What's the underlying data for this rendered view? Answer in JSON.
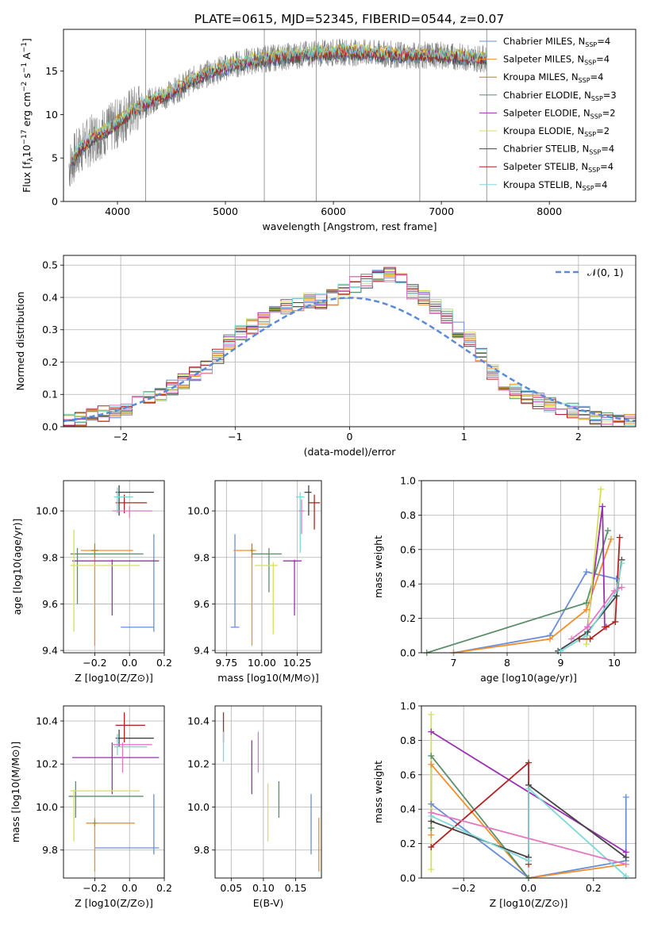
{
  "figure": {
    "title": "PLATE=0615, MJD=52345, FIBERID=0544, z=0.07"
  },
  "colors": {
    "Chabrier MILES": "#6a8fd6",
    "Salpeter MILES": "#f28e2b",
    "Kroupa MILES": "#b8860b",
    "Chabrier ELODIE": "#5a8f6a",
    "Salpeter ELODIE": "#9b30b0",
    "Kroupa ELODIE": "#d4e157",
    "Chabrier STELIB": "#444444",
    "Salpeter STELIB": "#b22222",
    "Kroupa STELIB": "#7fd8d8",
    "pink": "#e377c2",
    "data": "#808080"
  },
  "chart_data": [
    {
      "id": "spectrum",
      "type": "line",
      "xlabel": "wavelength [Angstrom, rest frame]",
      "ylabel": "Flux [f_λ 10^-17 erg cm^-2 s^-1 A^-1]",
      "xlim": [
        3500,
        8800
      ],
      "ylim": [
        0,
        19.8
      ],
      "xticks": [
        "4000",
        "5000",
        "6000",
        "7000",
        "8000"
      ],
      "yticks": [
        "0",
        "5",
        "10",
        "15"
      ],
      "legend_position": "top-right",
      "legend": [
        "Chabrier MILES, N_SSP=4",
        "Salpeter MILES, N_SSP=4",
        "Kroupa MILES, N_SSP=4",
        "Chabrier ELODIE, N_SSP=3",
        "Salpeter ELODIE, N_SSP=2",
        "Kroupa ELODIE, N_SSP=2",
        "Chabrier STELIB, N_SSP=4",
        "Salpeter STELIB, N_SSP=4",
        "Kroupa STELIB, N_SSP=4"
      ],
      "continuum": {
        "x": [
          3550,
          3650,
          3800,
          3950,
          4100,
          4300,
          4500,
          4700,
          4900,
          5100,
          5300,
          5500,
          5800,
          6100,
          6400,
          6700,
          7000,
          7300,
          7420
        ],
        "y": [
          4.0,
          6.0,
          7.5,
          8.5,
          10.0,
          11.5,
          12.5,
          14.0,
          15.0,
          15.8,
          16.3,
          16.6,
          17.0,
          17.2,
          17.0,
          16.8,
          16.8,
          16.5,
          16.4
        ]
      }
    },
    {
      "id": "residuals",
      "type": "histogram",
      "xlabel": "(data-model)/error",
      "ylabel": "Normed distribution",
      "xlim": [
        -2.5,
        2.5
      ],
      "ylim": [
        0,
        0.53
      ],
      "xticks": [
        "−2",
        "−1",
        "0",
        "1",
        "2"
      ],
      "yticks": [
        "0.0",
        "0.1",
        "0.2",
        "0.3",
        "0.4",
        "0.5"
      ],
      "legend": [
        "𝒩(0, 1)"
      ],
      "legend_position": "top-right",
      "bin_width": 0.1,
      "centers": [
        -2.45,
        -2.35,
        -2.25,
        -2.15,
        -2.05,
        -1.95,
        -1.85,
        -1.75,
        -1.65,
        -1.55,
        -1.45,
        -1.35,
        -1.25,
        -1.15,
        -1.05,
        -0.95,
        -0.85,
        -0.75,
        -0.65,
        -0.55,
        -0.45,
        -0.35,
        -0.25,
        -0.15,
        -0.05,
        0.05,
        0.15,
        0.25,
        0.35,
        0.45,
        0.55,
        0.65,
        0.75,
        0.85,
        0.95,
        1.05,
        1.15,
        1.25,
        1.35,
        1.45,
        1.55,
        1.65,
        1.75,
        1.85,
        1.95,
        2.05,
        2.15,
        2.25,
        2.35,
        2.45
      ],
      "base": [
        0.02,
        0.025,
        0.035,
        0.04,
        0.045,
        0.06,
        0.08,
        0.09,
        0.1,
        0.12,
        0.14,
        0.16,
        0.18,
        0.22,
        0.26,
        0.29,
        0.31,
        0.33,
        0.36,
        0.37,
        0.38,
        0.39,
        0.39,
        0.4,
        0.42,
        0.44,
        0.45,
        0.46,
        0.47,
        0.45,
        0.42,
        0.4,
        0.37,
        0.34,
        0.3,
        0.27,
        0.22,
        0.17,
        0.13,
        0.11,
        0.09,
        0.08,
        0.07,
        0.06,
        0.05,
        0.04,
        0.03,
        0.025,
        0.02,
        0.015
      ]
    },
    {
      "id": "age-vs-Z",
      "type": "errorbar",
      "xlabel": "Z [log10(Z/Z⊙)]",
      "ylabel": "age [log10(age/yr)]",
      "xlim": [
        -0.38,
        0.2
      ],
      "ylim": [
        9.39,
        10.13
      ],
      "xticks": [
        "−0.2",
        "0.0",
        "0.2"
      ],
      "yticks": [
        "9.4",
        "9.6",
        "9.8",
        "10.0"
      ],
      "points": [
        {
          "c": "Chabrier MILES",
          "x": 0.14,
          "y": 9.5,
          "xlo": -0.05,
          "xhi": 0.14,
          "ylo": 9.48,
          "yhi": 9.9
        },
        {
          "c": "Salpeter MILES",
          "x": -0.2,
          "y": 9.83,
          "xlo": -0.28,
          "xhi": 0.02,
          "ylo": 9.42,
          "yhi": 9.83
        },
        {
          "c": "Kroupa MILES",
          "x": -0.2,
          "y": 9.83,
          "xlo": -0.22,
          "xhi": -0.18,
          "ylo": 9.8,
          "yhi": 9.86
        },
        {
          "c": "Chabrier ELODIE",
          "x": -0.3,
          "y": 9.815,
          "xlo": -0.34,
          "xhi": 0.08,
          "ylo": 9.6,
          "yhi": 9.84
        },
        {
          "c": "Salpeter ELODIE",
          "x": -0.1,
          "y": 9.785,
          "xlo": -0.33,
          "xhi": 0.17,
          "ylo": 9.55,
          "yhi": 9.79
        },
        {
          "c": "Kroupa ELODIE",
          "x": -0.32,
          "y": 9.765,
          "xlo": -0.34,
          "xhi": 0.06,
          "ylo": 9.48,
          "yhi": 9.92
        },
        {
          "c": "Chabrier STELIB",
          "x": -0.06,
          "y": 10.08,
          "xlo": -0.08,
          "xhi": 0.14,
          "ylo": 9.98,
          "yhi": 10.11
        },
        {
          "c": "Salpeter STELIB",
          "x": -0.03,
          "y": 10.035,
          "xlo": -0.08,
          "xhi": 0.1,
          "ylo": 9.99,
          "yhi": 10.07
        },
        {
          "c": "Kroupa STELIB",
          "x": -0.07,
          "y": 10.06,
          "xlo": -0.09,
          "xhi": 0.02,
          "ylo": 9.99,
          "yhi": 10.1
        },
        {
          "c": "pink",
          "x": 0.0,
          "y": 10.0,
          "xlo": -0.1,
          "xhi": 0.13,
          "ylo": 9.97,
          "yhi": 10.02
        }
      ]
    },
    {
      "id": "age-vs-mass",
      "type": "errorbar",
      "xlabel": "mass [log10(M/M⊙)]",
      "ylabel": "",
      "xlim": [
        9.67,
        10.42
      ],
      "ylim": [
        9.39,
        10.13
      ],
      "xticks": [
        "9.75",
        "10.00",
        "10.25"
      ],
      "yticks": [
        "9.4",
        "9.6",
        "9.8",
        "10.0"
      ],
      "points": [
        {
          "c": "Chabrier MILES",
          "x": 9.81,
          "y": 9.5,
          "xlo": 9.78,
          "xhi": 9.84,
          "ylo": 9.5,
          "yhi": 9.9
        },
        {
          "c": "Salpeter MILES",
          "x": 9.93,
          "y": 9.83,
          "xlo": 9.8,
          "xhi": 9.96,
          "ylo": 9.42,
          "yhi": 9.84
        },
        {
          "c": "Kroupa MILES",
          "x": 9.93,
          "y": 9.83,
          "xlo": 9.92,
          "xhi": 9.94,
          "ylo": 9.8,
          "yhi": 9.86
        },
        {
          "c": "Chabrier ELODIE",
          "x": 10.05,
          "y": 9.815,
          "xlo": 9.93,
          "xhi": 10.14,
          "ylo": 9.65,
          "yhi": 9.84
        },
        {
          "c": "Salpeter ELODIE",
          "x": 10.23,
          "y": 9.785,
          "xlo": 10.15,
          "xhi": 10.28,
          "ylo": 9.55,
          "yhi": 9.79
        },
        {
          "c": "Kroupa ELODIE",
          "x": 10.08,
          "y": 9.765,
          "xlo": 9.95,
          "xhi": 10.11,
          "ylo": 9.47,
          "yhi": 9.78
        },
        {
          "c": "Chabrier STELIB",
          "x": 10.33,
          "y": 10.08,
          "xlo": 10.3,
          "xhi": 10.35,
          "ylo": 9.98,
          "yhi": 10.11
        },
        {
          "c": "Salpeter STELIB",
          "x": 10.37,
          "y": 10.035,
          "xlo": 10.33,
          "xhi": 10.41,
          "ylo": 9.92,
          "yhi": 10.07
        },
        {
          "c": "Kroupa STELIB",
          "x": 10.27,
          "y": 10.06,
          "xlo": 10.24,
          "xhi": 10.3,
          "ylo": 9.82,
          "yhi": 10.08
        },
        {
          "c": "pink",
          "x": 10.28,
          "y": 10.0,
          "xlo": 10.26,
          "xhi": 10.3,
          "ylo": 9.9,
          "yhi": 10.05
        }
      ]
    },
    {
      "id": "weight-vs-age",
      "type": "line",
      "xlabel": "age [log10(age/yr)]",
      "ylabel": "mass weight",
      "xlim": [
        6.4,
        10.4
      ],
      "ylim": [
        0,
        1.0
      ],
      "xticks": [
        "7",
        "8",
        "9",
        "10"
      ],
      "yticks": [
        "0.0",
        "0.2",
        "0.4",
        "0.6",
        "0.8",
        "1.0"
      ],
      "series": [
        {
          "c": "Chabrier MILES",
          "x": [
            7.0,
            8.8,
            9.48,
            10.04
          ],
          "y": [
            0.0,
            0.1,
            0.47,
            0.43
          ]
        },
        {
          "c": "Salpeter MILES",
          "x": [
            7.0,
            8.8,
            9.48,
            9.94
          ],
          "y": [
            0.0,
            0.08,
            0.25,
            0.66
          ]
        },
        {
          "c": "Chabrier ELODIE",
          "x": [
            6.5,
            9.48,
            9.88
          ],
          "y": [
            0.0,
            0.29,
            0.71
          ]
        },
        {
          "c": "Salpeter ELODIE",
          "x": [
            9.5,
            9.78,
            9.82
          ],
          "y": [
            0.15,
            0.85,
            0.15
          ]
        },
        {
          "c": "Kroupa ELODIE",
          "x": [
            9.48,
            9.75
          ],
          "y": [
            0.05,
            0.95
          ]
        },
        {
          "c": "Chabrier STELIB",
          "x": [
            8.95,
            9.5,
            10.04,
            10.14
          ],
          "y": [
            0.01,
            0.12,
            0.33,
            0.54
          ]
        },
        {
          "c": "Salpeter STELIB",
          "x": [
            9.35,
            9.55,
            9.85,
            10.02,
            10.1
          ],
          "y": [
            0.08,
            0.08,
            0.15,
            0.18,
            0.67
          ]
        },
        {
          "c": "Kroupa STELIB",
          "x": [
            9.0,
            9.48,
            10.04,
            10.14
          ],
          "y": [
            0.01,
            0.1,
            0.36,
            0.52
          ]
        },
        {
          "c": "pink",
          "x": [
            9.2,
            9.5,
            10.0,
            10.14
          ],
          "y": [
            0.08,
            0.15,
            0.36,
            0.38
          ]
        }
      ]
    },
    {
      "id": "mass-vs-Z",
      "type": "errorbar",
      "xlabel": "Z [log10(Z/Z⊙)]",
      "ylabel": "mass [log10(M/M⊙)]",
      "xlim": [
        -0.38,
        0.2
      ],
      "ylim": [
        9.67,
        10.47
      ],
      "xticks": [
        "−0.2",
        "0.0",
        "0.2"
      ],
      "yticks": [
        "9.8",
        "10.0",
        "10.2",
        "10.4"
      ],
      "points": [
        {
          "c": "Chabrier MILES",
          "x": 0.14,
          "y": 9.81,
          "xlo": -0.2,
          "xhi": 0.17,
          "ylo": 9.78,
          "yhi": 10.06
        },
        {
          "c": "Salpeter MILES",
          "x": -0.2,
          "y": 9.925,
          "xlo": -0.25,
          "xhi": 0.03,
          "ylo": 9.7,
          "yhi": 9.95
        },
        {
          "c": "Kroupa MILES",
          "x": -0.2,
          "y": 9.925,
          "xlo": -0.21,
          "xhi": -0.19,
          "ylo": 9.91,
          "yhi": 9.94
        },
        {
          "c": "Chabrier ELODIE",
          "x": -0.31,
          "y": 10.05,
          "xlo": -0.35,
          "xhi": 0.08,
          "ylo": 9.95,
          "yhi": 10.12
        },
        {
          "c": "Salpeter ELODIE",
          "x": -0.1,
          "y": 10.23,
          "xlo": -0.33,
          "xhi": 0.17,
          "ylo": 10.06,
          "yhi": 10.3
        },
        {
          "c": "Kroupa ELODIE",
          "x": -0.32,
          "y": 10.075,
          "xlo": -0.34,
          "xhi": 0.06,
          "ylo": 9.84,
          "yhi": 10.08
        },
        {
          "c": "Chabrier STELIB",
          "x": -0.06,
          "y": 10.32,
          "xlo": -0.08,
          "xhi": 0.14,
          "ylo": 10.28,
          "yhi": 10.36
        },
        {
          "c": "Salpeter STELIB",
          "x": -0.03,
          "y": 10.38,
          "xlo": -0.08,
          "xhi": 0.09,
          "ylo": 10.3,
          "yhi": 10.44
        },
        {
          "c": "Kroupa STELIB",
          "x": -0.07,
          "y": 10.28,
          "xlo": -0.09,
          "xhi": 0.1,
          "ylo": 10.24,
          "yhi": 10.34
        },
        {
          "c": "pink",
          "x": -0.04,
          "y": 10.29,
          "xlo": -0.1,
          "xhi": 0.13,
          "ylo": 10.16,
          "yhi": 10.3
        }
      ]
    },
    {
      "id": "mass-vs-EBV",
      "type": "errorbar",
      "xlabel": "E(B-V)",
      "ylabel": "",
      "xlim": [
        0.025,
        0.19
      ],
      "ylim": [
        9.67,
        10.47
      ],
      "xticks": [
        "0.05",
        "0.10",
        "0.15"
      ],
      "yticks": [
        "9.8",
        "10.0",
        "10.2",
        "10.4"
      ],
      "points": [
        {
          "c": "Chabrier MILES",
          "x": 0.174,
          "y": 9.92,
          "xlo": 0.174,
          "xhi": 0.174,
          "ylo": 9.78,
          "yhi": 10.06
        },
        {
          "c": "Salpeter MILES",
          "x": 0.186,
          "y": 9.82,
          "xlo": 0.186,
          "xhi": 0.186,
          "ylo": 9.7,
          "yhi": 9.95
        },
        {
          "c": "Chabrier ELODIE",
          "x": 0.124,
          "y": 10.03,
          "xlo": 0.124,
          "xhi": 0.124,
          "ylo": 9.95,
          "yhi": 10.12
        },
        {
          "c": "Salpeter ELODIE",
          "x": 0.082,
          "y": 10.18,
          "xlo": 0.082,
          "xhi": 0.082,
          "ylo": 10.06,
          "yhi": 10.31
        },
        {
          "c": "Kroupa ELODIE",
          "x": 0.107,
          "y": 9.96,
          "xlo": 0.107,
          "xhi": 0.107,
          "ylo": 9.84,
          "yhi": 10.11
        },
        {
          "c": "pink",
          "x": 0.092,
          "y": 10.27,
          "xlo": 0.092,
          "xhi": 0.092,
          "ylo": 10.16,
          "yhi": 10.35
        },
        {
          "c": "Salpeter STELIB",
          "x": 0.038,
          "y": 10.38,
          "xlo": 0.038,
          "xhi": 0.038,
          "ylo": 10.3,
          "yhi": 10.44
        },
        {
          "c": "Kroupa STELIB",
          "x": 0.038,
          "y": 10.28,
          "xlo": 0.038,
          "xhi": 0.038,
          "ylo": 10.21,
          "yhi": 10.35
        }
      ]
    },
    {
      "id": "weight-vs-Z",
      "type": "line",
      "xlabel": "Z [log10(Z/Z⊙)]",
      "ylabel": "mass weight",
      "xlim": [
        -0.33,
        0.33
      ],
      "ylim": [
        0,
        1.0
      ],
      "xticks": [
        "−0.2",
        "0.0",
        "0.2"
      ],
      "yticks": [
        "0.0",
        "0.2",
        "0.4",
        "0.6",
        "0.8",
        "1.0"
      ],
      "series": [
        {
          "c": "Chabrier MILES",
          "x": [
            -0.3,
            0.0,
            0.3,
            0.3
          ],
          "y": [
            0.43,
            0.0,
            0.1,
            0.47
          ]
        },
        {
          "c": "Salpeter MILES",
          "x": [
            -0.3,
            -0.3,
            0.0,
            0.3
          ],
          "y": [
            0.25,
            0.66,
            0.0,
            0.08
          ]
        },
        {
          "c": "Chabrier ELODIE",
          "x": [
            -0.3,
            -0.3,
            0.0
          ],
          "y": [
            0.29,
            0.71,
            0.0
          ]
        },
        {
          "c": "Salpeter ELODIE",
          "x": [
            -0.3,
            0.3
          ],
          "y": [
            0.85,
            0.15
          ]
        },
        {
          "c": "Kroupa ELODIE",
          "x": [
            -0.3,
            -0.3
          ],
          "y": [
            0.05,
            0.95
          ]
        },
        {
          "c": "Chabrier STELIB",
          "x": [
            -0.3,
            0.0,
            0.0,
            0.3
          ],
          "y": [
            0.33,
            0.12,
            0.54,
            0.12
          ]
        },
        {
          "c": "Salpeter STELIB",
          "x": [
            -0.3,
            0.0,
            0.0
          ],
          "y": [
            0.18,
            0.67,
            0.08
          ]
        },
        {
          "c": "Kroupa STELIB",
          "x": [
            -0.3,
            0.0,
            0.0,
            0.3
          ],
          "y": [
            0.36,
            0.1,
            0.52,
            0.01
          ]
        },
        {
          "c": "pink",
          "x": [
            -0.3,
            0.3
          ],
          "y": [
            0.38,
            0.08
          ]
        }
      ]
    }
  ]
}
